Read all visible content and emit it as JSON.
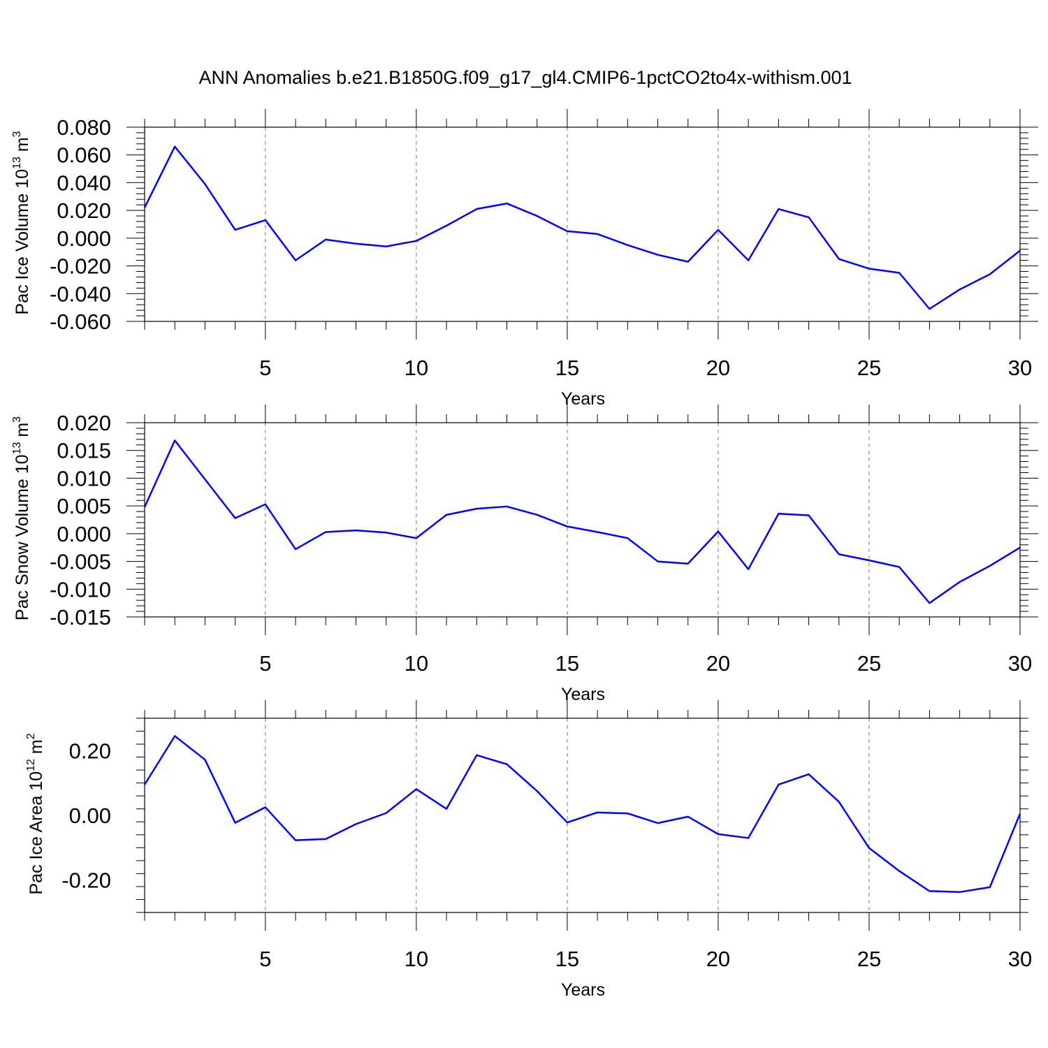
{
  "title": "ANN Anomalies b.e21.B1850G.f09_g17_gl4.CMIP6-1pctCO2to4x-withism.001",
  "line_color": "#0000ff",
  "chart_data": [
    {
      "type": "line",
      "title": "ANN Anomalies b.e21.B1850G.f09_g17_gl4.CMIP6-1pctCO2to4x-withism.001",
      "xlabel": "Years",
      "ylabel": "Pac Ice Volume 10",
      "ylabel_exp": "13",
      "ylabel_unit": " m",
      "ylabel_unit_exp": "3",
      "xlim": [
        1,
        30
      ],
      "ylim": [
        -0.06,
        0.08
      ],
      "xticks": [
        5,
        10,
        15,
        20,
        25,
        30
      ],
      "yticks": [
        -0.06,
        -0.04,
        -0.02,
        0.0,
        0.02,
        0.04,
        0.06,
        0.08
      ],
      "ytick_labels": [
        "-0.060",
        "-0.040",
        "-0.020",
        "0.000",
        "0.020",
        "0.040",
        "0.060",
        "0.080"
      ],
      "grid_x": [
        5,
        10,
        15,
        20,
        25
      ],
      "x": [
        1,
        2,
        3,
        4,
        5,
        6,
        7,
        8,
        9,
        10,
        11,
        12,
        13,
        14,
        15,
        16,
        17,
        18,
        19,
        20,
        21,
        22,
        23,
        24,
        25,
        26,
        27,
        28,
        29,
        30
      ],
      "series": [
        {
          "name": "Pac Ice Volume",
          "values": [
            0.022,
            0.066,
            0.039,
            0.006,
            0.013,
            -0.016,
            -0.001,
            -0.004,
            -0.006,
            -0.002,
            0.009,
            0.021,
            0.025,
            0.016,
            0.005,
            0.003,
            -0.005,
            -0.012,
            -0.017,
            0.006,
            -0.016,
            0.021,
            0.015,
            -0.015,
            -0.022,
            -0.025,
            -0.051,
            -0.037,
            -0.026,
            -0.009
          ]
        }
      ]
    },
    {
      "type": "line",
      "xlabel": "Years",
      "ylabel": "Pac Snow Volume 10",
      "ylabel_exp": "13",
      "ylabel_unit": " m",
      "ylabel_unit_exp": "3",
      "xlim": [
        1,
        30
      ],
      "ylim": [
        -0.015,
        0.02
      ],
      "xticks": [
        5,
        10,
        15,
        20,
        25,
        30
      ],
      "yticks": [
        -0.015,
        -0.01,
        -0.005,
        0.0,
        0.005,
        0.01,
        0.015,
        0.02
      ],
      "ytick_labels": [
        "-0.015",
        "-0.010",
        "-0.005",
        "0.000",
        "0.005",
        "0.010",
        "0.015",
        "0.020"
      ],
      "grid_x": [
        5,
        10,
        15,
        20,
        25
      ],
      "x": [
        1,
        2,
        3,
        4,
        5,
        6,
        7,
        8,
        9,
        10,
        11,
        12,
        13,
        14,
        15,
        16,
        17,
        18,
        19,
        20,
        21,
        22,
        23,
        24,
        25,
        26,
        27,
        28,
        29,
        30
      ],
      "series": [
        {
          "name": "Pac Snow Volume",
          "values": [
            0.0048,
            0.0168,
            0.0098,
            0.0028,
            0.0053,
            -0.0028,
            0.0003,
            0.0006,
            0.0002,
            -0.0008,
            0.0034,
            0.0045,
            0.0049,
            0.0034,
            0.0013,
            0.0003,
            -0.0008,
            -0.005,
            -0.0054,
            0.0004,
            -0.0064,
            0.0036,
            0.0033,
            -0.0037,
            -0.0048,
            -0.006,
            -0.0125,
            -0.0087,
            -0.0058,
            -0.0025
          ]
        }
      ]
    },
    {
      "type": "line",
      "xlabel": "Years",
      "ylabel": "Pac Ice Area 10",
      "ylabel_exp": "12",
      "ylabel_unit": " m",
      "ylabel_unit_exp": "2",
      "xlim": [
        1,
        30
      ],
      "ylim": [
        -0.3,
        0.3
      ],
      "xticks": [
        5,
        10,
        15,
        20,
        25,
        30
      ],
      "yticks": [
        -0.2,
        0.0,
        0.2
      ],
      "ytick_labels": [
        "-0.20",
        "0.00",
        "0.20"
      ],
      "grid_x": [
        5,
        10,
        15,
        20,
        25
      ],
      "x": [
        1,
        2,
        3,
        4,
        5,
        6,
        7,
        8,
        9,
        10,
        11,
        12,
        13,
        14,
        15,
        16,
        17,
        18,
        19,
        20,
        21,
        22,
        23,
        24,
        25,
        26,
        27,
        28,
        29,
        30
      ],
      "series": [
        {
          "name": "Pac Ice Area",
          "values": [
            0.095,
            0.245,
            0.172,
            -0.023,
            0.025,
            -0.077,
            -0.073,
            -0.027,
            0.007,
            0.081,
            0.02,
            0.186,
            0.158,
            0.075,
            -0.022,
            0.009,
            0.006,
            -0.024,
            -0.004,
            -0.058,
            -0.07,
            0.095,
            0.127,
            0.042,
            -0.101,
            -0.172,
            -0.234,
            -0.237,
            -0.222,
            0.005
          ]
        }
      ]
    }
  ]
}
